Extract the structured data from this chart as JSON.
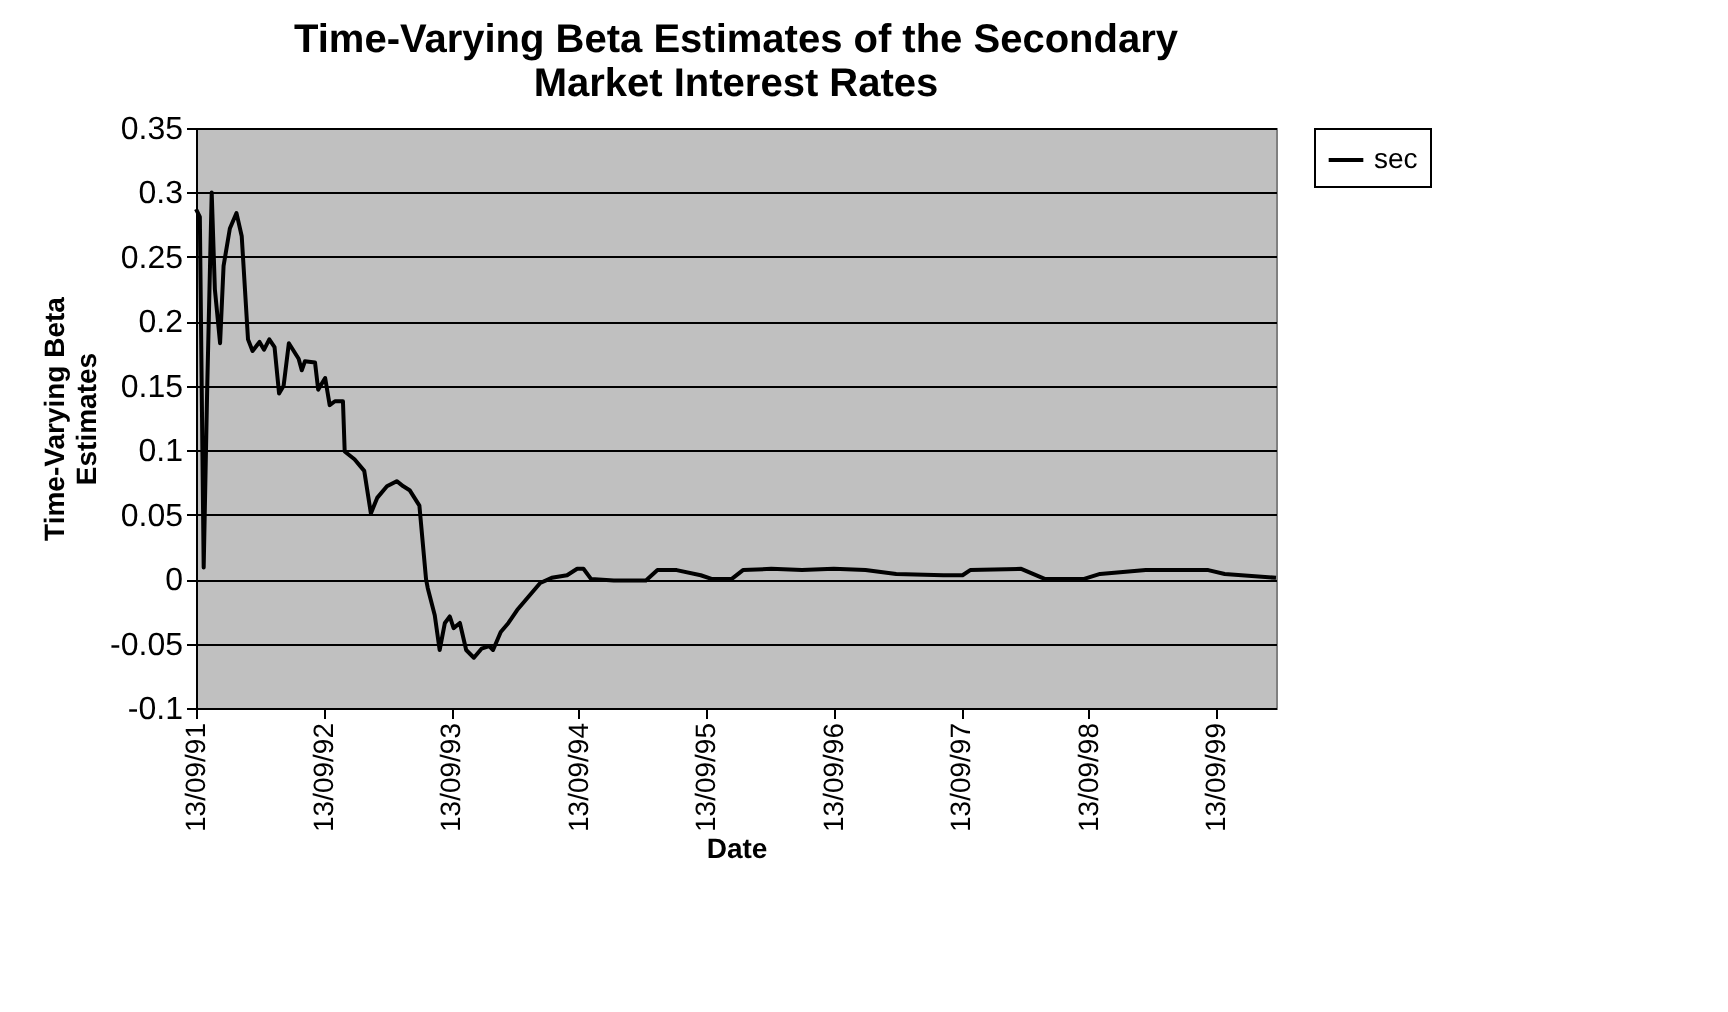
{
  "chart_data": {
    "type": "line",
    "title": "Time-Varying Beta Estimates of the Secondary Market Interest Rates",
    "xlabel": "Date",
    "ylabel": "Time-Varying Beta Estimates",
    "xlim": [
      "1991-09-13",
      "2000-03-03"
    ],
    "xticks": [
      {
        "value": "1991-09-13",
        "label": "13/09/91"
      },
      {
        "value": "1992-09-13",
        "label": "13/09/92"
      },
      {
        "value": "1993-09-13",
        "label": "13/09/93"
      },
      {
        "value": "1994-09-13",
        "label": "13/09/94"
      },
      {
        "value": "1995-09-13",
        "label": "13/09/95"
      },
      {
        "value": "1996-09-13",
        "label": "13/09/96"
      },
      {
        "value": "1997-09-13",
        "label": "13/09/97"
      },
      {
        "value": "1998-09-13",
        "label": "13/09/98"
      },
      {
        "value": "1999-09-13",
        "label": "13/09/99"
      }
    ],
    "ylim": [
      -0.1,
      0.35
    ],
    "yticks": [
      -0.1,
      -0.05,
      0,
      0.05,
      0.1,
      0.15,
      0.2,
      0.25,
      0.3,
      0.35
    ],
    "grid": "y",
    "legend": "right",
    "line_style": "solid",
    "series": [
      {
        "name": "sec",
        "color": "#000000",
        "x": [
          "1991-09-13",
          "1991-09-24",
          "1991-10-05",
          "1991-10-15",
          "1991-10-28",
          "1991-11-06",
          "1991-11-21",
          "1991-12-01",
          "1991-12-19",
          "1992-01-07",
          "1992-01-22",
          "1992-02-09",
          "1992-02-22",
          "1992-03-13",
          "1992-03-26",
          "1992-04-10",
          "1992-04-25",
          "1992-05-08",
          "1992-05-21",
          "1992-06-05",
          "1992-07-03",
          "1992-07-12",
          "1992-07-21",
          "1992-08-19",
          "1992-08-28",
          "1992-09-17",
          "1992-09-30",
          "1992-10-15",
          "1992-11-07",
          "1992-11-12",
          "1992-12-10",
          "1993-01-07",
          "1993-01-26",
          "1993-02-13",
          "1993-03-13",
          "1993-04-10",
          "1993-04-29",
          "1993-05-17",
          "1993-06-14",
          "1993-07-03",
          "1993-07-08",
          "1993-07-28",
          "1993-08-11",
          "1993-08-26",
          "1993-09-09",
          "1993-09-20",
          "1993-10-08",
          "1993-10-26",
          "1993-11-17",
          "1993-12-09",
          "1993-12-31",
          "1994-01-11",
          "1994-02-02",
          "1994-02-24",
          "1994-03-21",
          "1994-04-12",
          "1994-05-04",
          "1994-05-26",
          "1994-06-28",
          "1994-08-11",
          "1994-09-09",
          "1994-09-27",
          "1994-10-19",
          "1994-12-23",
          "1995-03-25",
          "1995-04-27",
          "1995-06-21",
          "1995-08-29",
          "1995-10-01",
          "1995-11-25",
          "1995-12-28",
          "1996-03-18",
          "1996-06-14",
          "1996-09-13",
          "1996-12-13",
          "1997-03-11",
          "1997-07-24",
          "1997-09-17",
          "1997-10-09",
          "1998-03-04",
          "1998-05-12",
          "1998-08-29",
          "1998-10-16",
          "1999-02-24",
          "1999-08-22",
          "1999-10-08",
          "2000-03-03"
        ],
        "values": [
          0.287,
          0.281,
          0.009,
          0.147,
          0.3,
          0.225,
          0.183,
          0.243,
          0.272,
          0.284,
          0.266,
          0.186,
          0.177,
          0.184,
          0.178,
          0.186,
          0.18,
          0.144,
          0.15,
          0.183,
          0.171,
          0.162,
          0.169,
          0.168,
          0.147,
          0.156,
          0.135,
          0.138,
          0.138,
          0.099,
          0.093,
          0.084,
          0.051,
          0.063,
          0.072,
          0.076,
          0.072,
          0.069,
          0.057,
          0.0,
          -0.007,
          -0.028,
          -0.055,
          -0.034,
          -0.029,
          -0.038,
          -0.034,
          -0.055,
          -0.061,
          -0.054,
          -0.052,
          -0.055,
          -0.041,
          -0.034,
          -0.024,
          -0.017,
          -0.01,
          -0.003,
          0.001,
          0.003,
          0.008,
          0.008,
          0.0,
          -0.001,
          -0.001,
          0.007,
          0.007,
          0.003,
          0.0,
          0.0,
          0.007,
          0.008,
          0.007,
          0.008,
          0.007,
          0.004,
          0.003,
          0.003,
          0.007,
          0.008,
          0.0,
          0.0,
          0.004,
          0.007,
          0.007,
          0.004,
          0.001
        ]
      }
    ]
  }
}
